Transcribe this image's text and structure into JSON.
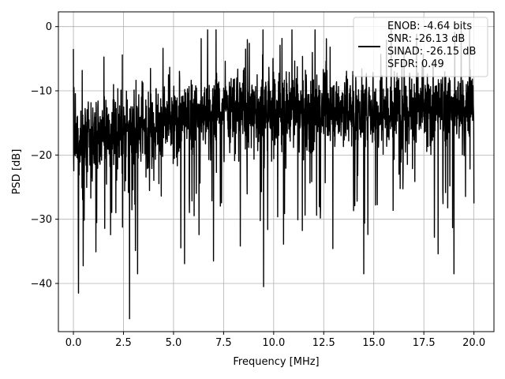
{
  "chart_data": {
    "type": "line",
    "title": "",
    "xlabel": "Frequency [MHz]",
    "ylabel": "PSD [dB]",
    "xlim": [
      -0.75,
      21.0
    ],
    "ylim": [
      -47.5,
      2.3
    ],
    "xticks": [
      0.0,
      2.5,
      5.0,
      7.5,
      10.0,
      12.5,
      15.0,
      17.5,
      20.0
    ],
    "xtick_labels": [
      "0.0",
      "2.5",
      "5.0",
      "7.5",
      "10.0",
      "12.5",
      "15.0",
      "17.5",
      "20.0"
    ],
    "yticks": [
      0,
      -10,
      -20,
      -30,
      -40
    ],
    "ytick_labels": [
      "0",
      "−10",
      "−20",
      "−30",
      "−40"
    ],
    "grid": true,
    "legend_position": "top-right",
    "series": [
      {
        "color": "#000000",
        "x_range": [
          0.0,
          20.0
        ],
        "points": 2048,
        "min": -45.5,
        "max": -0.5,
        "typical_range": [
          -27,
          -5
        ],
        "notable_values": [
          {
            "x": 0.0,
            "y": -3.5
          },
          {
            "x": 0.25,
            "y": -41.5
          },
          {
            "x": 2.8,
            "y": -45.5
          },
          {
            "x": 3.2,
            "y": -38.5
          },
          {
            "x": 7.0,
            "y": -36.5
          },
          {
            "x": 9.5,
            "y": -40.5
          },
          {
            "x": 14.5,
            "y": -38.5
          },
          {
            "x": 19.0,
            "y": -38.5
          }
        ]
      }
    ],
    "legend_lines": [
      "ENOB: -4.64 bits",
      "SNR: -26.13 dB",
      "SINAD: -26.15 dB",
      "SFDR: 0.49"
    ]
  }
}
